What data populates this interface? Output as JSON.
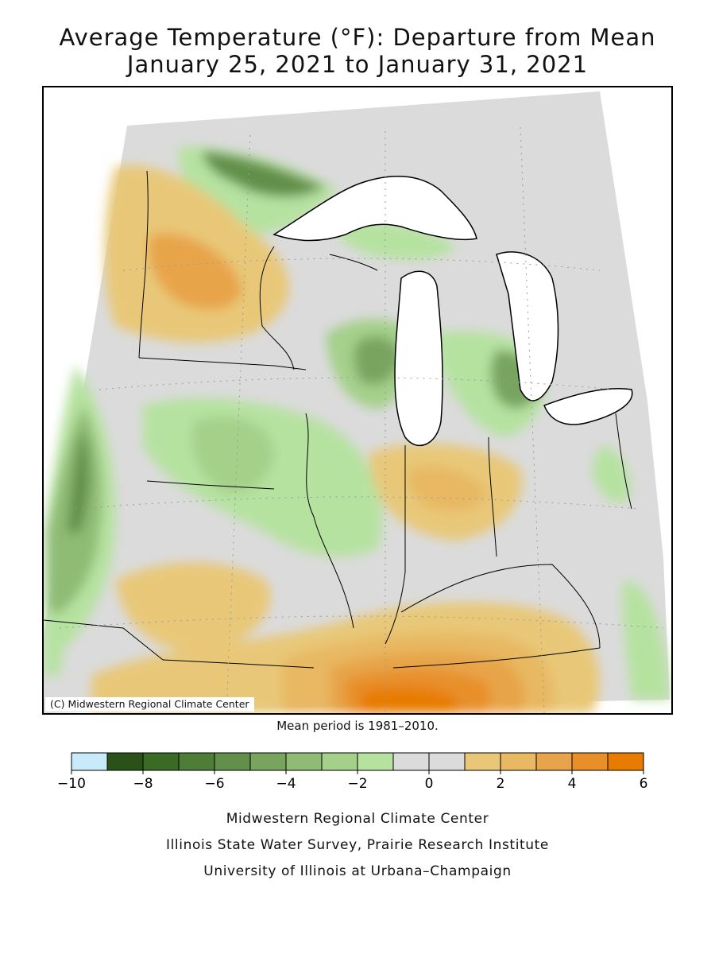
{
  "title": {
    "line1": "Average Temperature (°F): Departure from Mean",
    "line2": "January 25, 2021 to January 31, 2021"
  },
  "map": {
    "credit": "(C) Midwestern Regional Climate Center",
    "mean_period_note": "Mean period is 1981–2010."
  },
  "legend": {
    "units": "°F departure",
    "bins": [
      {
        "from": -10,
        "to": -9,
        "color": "#c8ebfa"
      },
      {
        "from": -9,
        "to": -8,
        "color": "#2a5218"
      },
      {
        "from": -8,
        "to": -7,
        "color": "#3a6b25"
      },
      {
        "from": -7,
        "to": -6,
        "color": "#4d7d36"
      },
      {
        "from": -6,
        "to": -5,
        "color": "#628f4a"
      },
      {
        "from": -5,
        "to": -4,
        "color": "#78a45e"
      },
      {
        "from": -4,
        "to": -3,
        "color": "#8fbb74"
      },
      {
        "from": -3,
        "to": -2,
        "color": "#a4d08a"
      },
      {
        "from": -2,
        "to": -1,
        "color": "#b6e2a0"
      },
      {
        "from": -1,
        "to": 0,
        "color": "#dbdbdb"
      },
      {
        "from": 0,
        "to": 1,
        "color": "#dbdbdb"
      },
      {
        "from": 1,
        "to": 2,
        "color": "#e8c878"
      },
      {
        "from": 2,
        "to": 3,
        "color": "#e8b862"
      },
      {
        "from": 3,
        "to": 4,
        "color": "#e8a44a"
      },
      {
        "from": 4,
        "to": 5,
        "color": "#e88f2a"
      },
      {
        "from": 5,
        "to": 6,
        "color": "#e87c00"
      }
    ],
    "ticks": [
      "−10",
      "−8",
      "−6",
      "−4",
      "−2",
      "0",
      "2",
      "4",
      "6"
    ]
  },
  "footer": {
    "line1": "Midwestern Regional Climate Center",
    "line2": "Illinois State Water Survey, Prairie Research Institute",
    "line3": "University of Illinois at Urbana–Champaign"
  }
}
